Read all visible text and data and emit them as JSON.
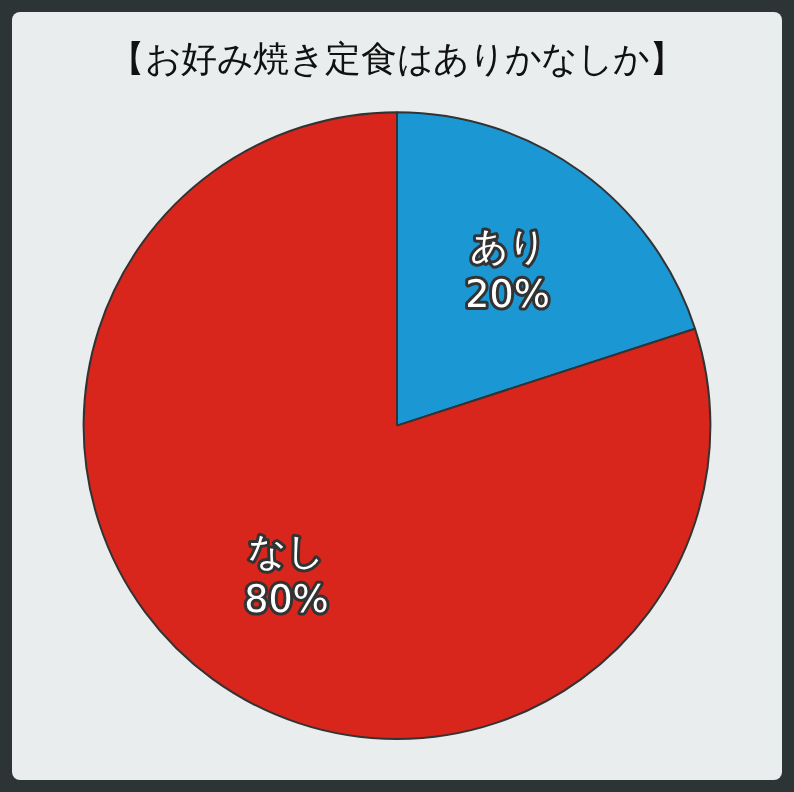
{
  "chart_data": {
    "type": "pie",
    "title": "【お好み焼き定食はありかなしか】",
    "categories": [
      "あり",
      "なし"
    ],
    "values": [
      20,
      80
    ],
    "colors": [
      "#1b98d4",
      "#d9261c"
    ],
    "value_labels": [
      "20%",
      "80%"
    ],
    "legend": false
  }
}
